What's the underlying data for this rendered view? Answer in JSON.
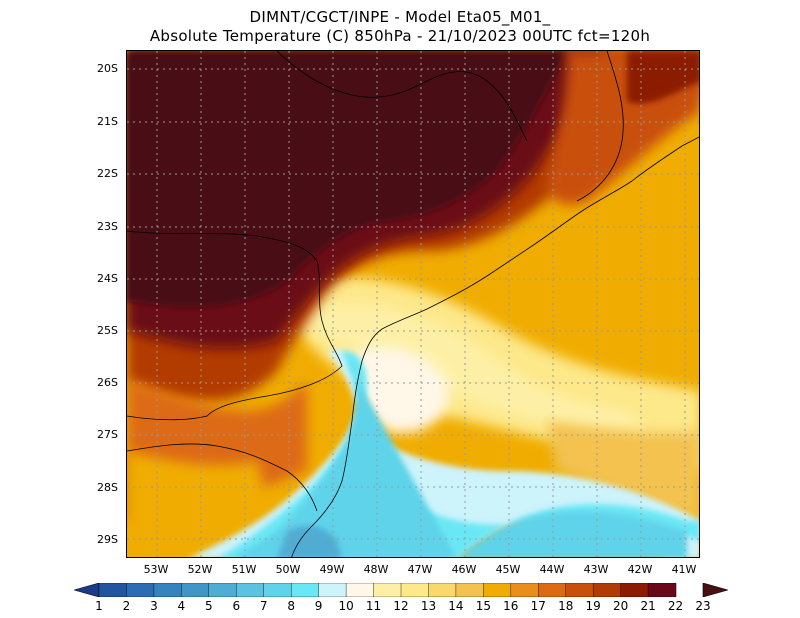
{
  "title": {
    "line1": "DIMNT/CGCT/INPE -  Model Eta05_M01_",
    "line2": "Absolute Temperature (C) 850hPa -  21/10/2023 00UTC fct=120h"
  },
  "axes": {
    "lat_labels": [
      "20S",
      "21S",
      "22S",
      "23S",
      "24S",
      "25S",
      "26S",
      "27S",
      "28S",
      "29S"
    ],
    "lon_labels": [
      "53W",
      "52W",
      "51W",
      "50W",
      "49W",
      "48W",
      "47W",
      "46W",
      "45W",
      "44W",
      "43W",
      "42W",
      "41W"
    ]
  },
  "colorbar": {
    "labels": [
      "1",
      "2",
      "3",
      "4",
      "5",
      "6",
      "7",
      "8",
      "9",
      "10",
      "11",
      "12",
      "13",
      "14",
      "15",
      "16",
      "17",
      "18",
      "19",
      "20",
      "21",
      "22",
      "23"
    ],
    "colors": [
      "#1f3f8f",
      "#2155a2",
      "#2a6db4",
      "#3583bf",
      "#4196c8",
      "#4fadd5",
      "#5bc3e0",
      "#5fd3ea",
      "#6ae7f5",
      "#cdf3fb",
      "#fff7e8",
      "#fdf0a6",
      "#fde88a",
      "#f9d86c",
      "#f3c24f",
      "#f0ad00",
      "#e98d1b",
      "#dd6a12",
      "#c9500a",
      "#b23a04",
      "#8c1b02",
      "#6a0818",
      "#4a0f12"
    ]
  },
  "legend": {
    "low_arrow_color": "#1b3a8a",
    "high_arrow_color": "#4a0f12"
  }
}
